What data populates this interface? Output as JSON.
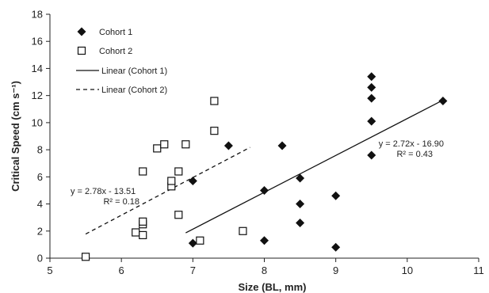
{
  "chart_data": {
    "type": "scatter",
    "xlabel": "Size (BL, mm)",
    "ylabel": "Critical Speed (cm s⁻¹)",
    "xlim": [
      5,
      11
    ],
    "ylim": [
      0,
      18
    ],
    "xticks": [
      5,
      6,
      7,
      8,
      9,
      10,
      11
    ],
    "yticks": [
      0,
      2,
      4,
      6,
      8,
      10,
      12,
      14,
      16,
      18
    ],
    "grid": false,
    "legend_position": "top-left",
    "series": [
      {
        "name": "Cohort 1",
        "marker": "filled-diamond",
        "color": "#111111",
        "points": [
          [
            7.0,
            1.1
          ],
          [
            7.0,
            5.7
          ],
          [
            7.5,
            8.3
          ],
          [
            8.0,
            1.3
          ],
          [
            8.0,
            5.0
          ],
          [
            8.25,
            8.3
          ],
          [
            8.5,
            2.6
          ],
          [
            8.5,
            4.0
          ],
          [
            8.5,
            5.9
          ],
          [
            9.0,
            0.8
          ],
          [
            9.0,
            4.6
          ],
          [
            9.5,
            7.6
          ],
          [
            9.5,
            10.1
          ],
          [
            9.5,
            11.8
          ],
          [
            9.5,
            12.6
          ],
          [
            9.5,
            13.4
          ],
          [
            10.5,
            11.6
          ]
        ]
      },
      {
        "name": "Cohort 2",
        "marker": "open-square",
        "color": "#111111",
        "points": [
          [
            5.5,
            0.1
          ],
          [
            6.2,
            1.9
          ],
          [
            6.3,
            1.7
          ],
          [
            6.3,
            2.5
          ],
          [
            6.3,
            2.7
          ],
          [
            6.3,
            6.4
          ],
          [
            6.5,
            8.1
          ],
          [
            6.6,
            8.4
          ],
          [
            6.7,
            5.3
          ],
          [
            6.7,
            5.7
          ],
          [
            6.8,
            3.2
          ],
          [
            6.8,
            6.4
          ],
          [
            6.9,
            8.4
          ],
          [
            7.1,
            1.3
          ],
          [
            7.3,
            9.4
          ],
          [
            7.3,
            11.6
          ],
          [
            7.7,
            2.0
          ]
        ]
      }
    ],
    "trendlines": [
      {
        "name": "Linear (Cohort 1)",
        "style": "solid",
        "slope": 2.72,
        "intercept": -16.9,
        "x_range": [
          6.9,
          10.5
        ],
        "equation": "y = 2.72x - 16.90",
        "r2": "R² = 0.43"
      },
      {
        "name": "Linear (Cohort 2)",
        "style": "dashed",
        "slope": 2.78,
        "intercept": -13.51,
        "x_range": [
          5.5,
          7.8
        ],
        "equation": "y = 2.78x - 13.51",
        "r2": "R² = 0.18"
      }
    ]
  }
}
